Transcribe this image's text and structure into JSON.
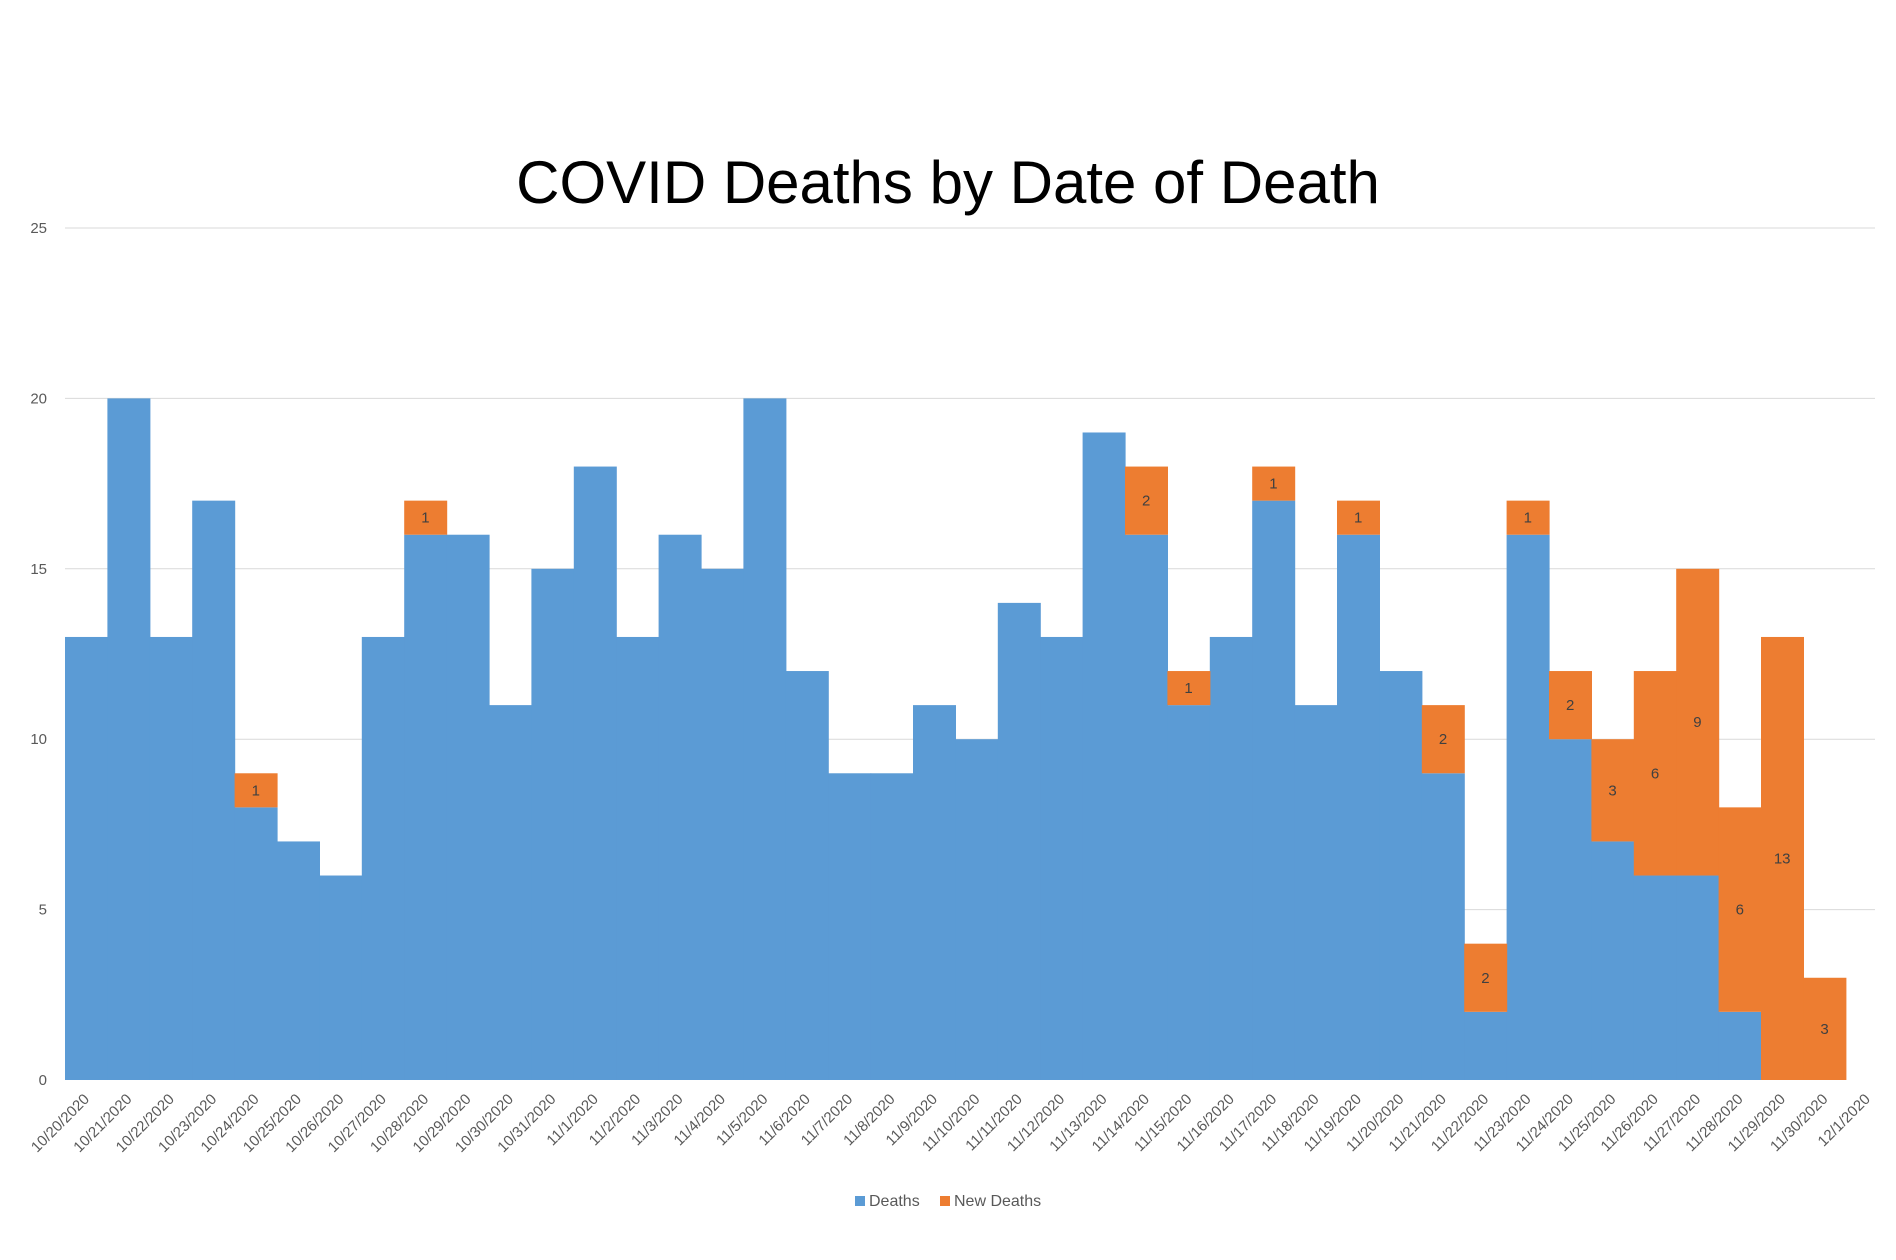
{
  "chart_data": {
    "type": "bar",
    "stacked": true,
    "title": "COVID Deaths by Date of Death",
    "xlabel": "",
    "ylabel": "",
    "ylim": [
      0,
      25
    ],
    "yticks": [
      0,
      5,
      10,
      15,
      20,
      25
    ],
    "grid": true,
    "legend_position": "bottom",
    "categories": [
      "10/20/2020",
      "10/21/2020",
      "10/22/2020",
      "10/23/2020",
      "10/24/2020",
      "10/25/2020",
      "10/26/2020",
      "10/27/2020",
      "10/28/2020",
      "10/29/2020",
      "10/30/2020",
      "10/31/2020",
      "11/1/2020",
      "11/2/2020",
      "11/3/2020",
      "11/4/2020",
      "11/5/2020",
      "11/6/2020",
      "11/7/2020",
      "11/8/2020",
      "11/9/2020",
      "11/10/2020",
      "11/11/2020",
      "11/12/2020",
      "11/13/2020",
      "11/14/2020",
      "11/15/2020",
      "11/16/2020",
      "11/17/2020",
      "11/18/2020",
      "11/19/2020",
      "11/20/2020",
      "11/21/2020",
      "11/22/2020",
      "11/23/2020",
      "11/24/2020",
      "11/25/2020",
      "11/26/2020",
      "11/27/2020",
      "11/28/2020",
      "11/29/2020",
      "11/30/2020",
      "12/1/2020"
    ],
    "series": [
      {
        "name": "Deaths",
        "color": "#5B9BD5",
        "values": [
          13,
          20,
          13,
          17,
          8,
          7,
          6,
          13,
          16,
          16,
          11,
          15,
          18,
          13,
          16,
          15,
          20,
          12,
          9,
          9,
          11,
          10,
          14,
          13,
          19,
          16,
          11,
          13,
          17,
          11,
          16,
          12,
          9,
          2,
          16,
          10,
          7,
          6,
          6,
          2,
          0,
          0,
          0
        ]
      },
      {
        "name": "New Deaths",
        "color": "#ED7D31",
        "values": [
          0,
          0,
          0,
          0,
          1,
          0,
          0,
          0,
          1,
          0,
          0,
          0,
          0,
          0,
          0,
          0,
          0,
          0,
          0,
          0,
          0,
          0,
          0,
          0,
          0,
          2,
          1,
          0,
          1,
          0,
          1,
          0,
          2,
          2,
          1,
          2,
          3,
          6,
          9,
          6,
          13,
          3,
          0
        ]
      }
    ]
  }
}
